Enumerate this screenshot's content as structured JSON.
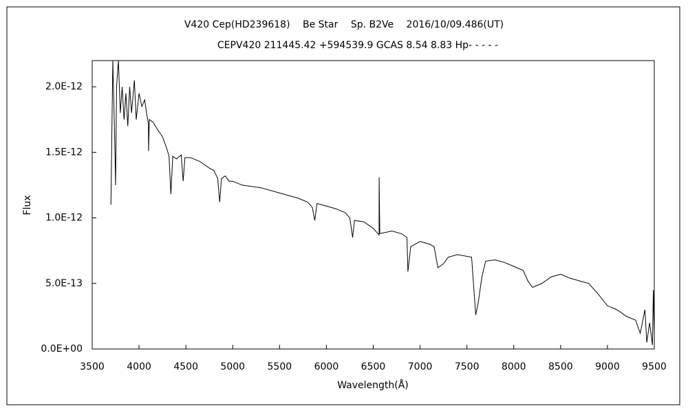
{
  "chart_data": {
    "type": "line",
    "title": "V420 Cep(HD239618)　 Be Star　 Sp. B2Ve　 2016/10/09.486(UT)",
    "subtitle": "CEPV420 211445.42 +594539.9 GCAS 8.54 8.83 Hp- - - - -",
    "x_label": "Wavelength(Å)",
    "y_label": "Flux",
    "xlim": [
      3500,
      9500
    ],
    "xticks": [
      3500,
      4000,
      4500,
      5000,
      5500,
      6000,
      6500,
      7000,
      7500,
      8000,
      8500,
      9000,
      9500
    ],
    "ylim": [
      0,
      2.2e-12
    ],
    "yticks": [
      {
        "value": 0,
        "label": "0.0E+00"
      },
      {
        "value": 5e-13,
        "label": "5.0E-13"
      },
      {
        "value": 1e-12,
        "label": "1.0E-12"
      },
      {
        "value": 1.5e-12,
        "label": "1.5E-12"
      },
      {
        "value": 2e-12,
        "label": "2.0E-12"
      }
    ],
    "grid": false,
    "series": [
      {
        "color": "#000000",
        "x": [
          3700,
          3720,
          3740,
          3750,
          3760,
          3780,
          3800,
          3820,
          3840,
          3860,
          3880,
          3900,
          3920,
          3950,
          3970,
          4000,
          4030,
          4060,
          4080,
          4100,
          4102,
          4110,
          4150,
          4200,
          4250,
          4300,
          4320,
          4340,
          4360,
          4400,
          4450,
          4471,
          4490,
          4550,
          4650,
          4750,
          4800,
          4840,
          4861,
          4880,
          4920,
          4960,
          5000,
          5100,
          5300,
          5500,
          5700,
          5800,
          5850,
          5876,
          5900,
          5950,
          6000,
          6100,
          6200,
          6250,
          6280,
          6300,
          6400,
          6500,
          6562,
          6563,
          6570,
          6700,
          6800,
          6860,
          6870,
          6900,
          7000,
          7100,
          7150,
          7190,
          7250,
          7300,
          7400,
          7550,
          7594,
          7620,
          7660,
          7700,
          7800,
          7900,
          8000,
          8100,
          8150,
          8200,
          8300,
          8400,
          8500,
          8600,
          8700,
          8800,
          8900,
          9000,
          9100,
          9200,
          9300,
          9350,
          9400,
          9420,
          9450,
          9480,
          9490,
          9500
        ],
        "values": [
          1.1e-12,
          2.2e-12,
          1.6e-12,
          1.25e-12,
          2e-12,
          2.2e-12,
          1.8e-12,
          2e-12,
          1.75e-12,
          1.95e-12,
          1.7e-12,
          2e-12,
          1.8e-12,
          2.05e-12,
          1.75e-12,
          1.95e-12,
          1.85e-12,
          1.9e-12,
          1.8e-12,
          1.72e-12,
          1.51e-12,
          1.75e-12,
          1.73e-12,
          1.67e-12,
          1.62e-12,
          1.52e-12,
          1.47e-12,
          1.18e-12,
          1.47e-12,
          1.45e-12,
          1.48e-12,
          1.28e-12,
          1.46e-12,
          1.46e-12,
          1.43e-12,
          1.38e-12,
          1.36e-12,
          1.3e-12,
          1.12e-12,
          1.3e-12,
          1.32e-12,
          1.28e-12,
          1.28e-12,
          1.25e-12,
          1.23e-12,
          1.19e-12,
          1.15e-12,
          1.12e-12,
          1.08e-12,
          9.8e-13,
          1.11e-12,
          1.1e-12,
          1.09e-12,
          1.07e-12,
          1.04e-12,
          1e-12,
          8.5e-13,
          9.8e-13,
          9.7e-13,
          9.2e-13,
          8.7e-13,
          1.31e-12,
          8.8e-13,
          9e-13,
          8.8e-13,
          8.5e-13,
          5.9e-13,
          7.8e-13,
          8.2e-13,
          8e-13,
          7.8e-13,
          6.2e-13,
          6.5e-13,
          7e-13,
          7.2e-13,
          7e-13,
          2.6e-13,
          3.5e-13,
          5.5e-13,
          6.7e-13,
          6.8e-13,
          6.6e-13,
          6.3e-13,
          6e-13,
          5.2e-13,
          4.7e-13,
          5e-13,
          5.5e-13,
          5.7e-13,
          5.4e-13,
          5.2e-13,
          5e-13,
          4.2e-13,
          3.3e-13,
          3e-13,
          2.5e-13,
          2.2e-13,
          1.2e-13,
          3e-13,
          5e-14,
          2e-13,
          3e-14,
          4.5e-13,
          1e-13
        ]
      }
    ]
  }
}
